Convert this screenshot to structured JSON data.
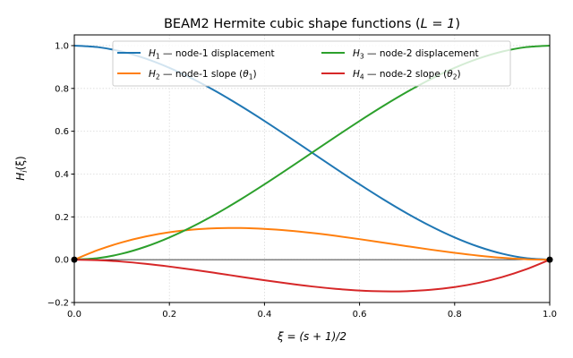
{
  "chart_data": {
    "type": "line",
    "title": {
      "prefix": "BEAM2 Hermite cubic shape functions (",
      "math": "L = 1",
      "suffix": ")"
    },
    "xlabel": {
      "math": "ξ = (s + 1)/2"
    },
    "ylabel": {
      "symbol": "H",
      "subscript": "i",
      "rest": "(ξ)"
    },
    "xlim": [
      0,
      1
    ],
    "ylim": [
      -0.2,
      1.05
    ],
    "xticks": [
      "0.0",
      "0.2",
      "0.4",
      "0.6",
      "0.8",
      "1.0"
    ],
    "yticks": [
      "−0.2",
      "0.0",
      "0.2",
      "0.4",
      "0.6",
      "0.8",
      "1.0"
    ],
    "grid": true,
    "legend_placement": "upper-center",
    "x": [
      0,
      0.05,
      0.1,
      0.15,
      0.2,
      0.25,
      0.3,
      0.35,
      0.4,
      0.45,
      0.5,
      0.55,
      0.6,
      0.65,
      0.7,
      0.75,
      0.8,
      0.85,
      0.9,
      0.95,
      1
    ],
    "series": [
      {
        "name": {
          "symbol": "H",
          "subscript": "1",
          "text": " — node-1 displacement"
        },
        "color": "#1f77b4",
        "values": [
          1,
          0.99275,
          0.972,
          0.93925,
          0.896,
          0.84375,
          0.784,
          0.71825,
          0.648,
          0.57475,
          0.5,
          0.42525,
          0.352,
          0.28175,
          0.216,
          0.15625,
          0.104,
          0.06075,
          0.028,
          0.00725,
          0
        ]
      },
      {
        "name": {
          "symbol": "H",
          "subscript": "2",
          "text": " — node-1 slope (",
          "sym2": "θ",
          "sub2": "1",
          "close": ")"
        },
        "color": "#ff7f0e",
        "values": [
          0,
          0.045125,
          0.081,
          0.108375,
          0.128,
          0.140625,
          0.147,
          0.147875,
          0.144,
          0.136125,
          0.125,
          0.111375,
          0.096,
          0.079625,
          0.063,
          0.046875,
          0.032,
          0.019125,
          0.009,
          0.002375,
          0
        ]
      },
      {
        "name": {
          "symbol": "H",
          "subscript": "3",
          "text": " — node-2 displacement"
        },
        "color": "#2ca02c",
        "values": [
          0,
          0.00725,
          0.028,
          0.06075,
          0.104,
          0.15625,
          0.216,
          0.28175,
          0.352,
          0.42525,
          0.5,
          0.57475,
          0.648,
          0.71825,
          0.784,
          0.84375,
          0.896,
          0.93925,
          0.972,
          0.99275,
          1
        ]
      },
      {
        "name": {
          "symbol": "H",
          "subscript": "4",
          "text": " — node-2 slope (",
          "sym2": "θ",
          "sub2": "2",
          "close": ")"
        },
        "color": "#d62728",
        "values": [
          0,
          -0.002375,
          -0.009,
          -0.019125,
          -0.032,
          -0.046875,
          -0.063,
          -0.079625,
          -0.096,
          -0.111375,
          -0.125,
          -0.136125,
          -0.144,
          -0.147875,
          -0.147,
          -0.140625,
          -0.128,
          -0.108375,
          -0.081,
          -0.045125,
          0
        ]
      }
    ],
    "node_markers": [
      {
        "x": 0,
        "y": 0
      },
      {
        "x": 1,
        "y": 0
      }
    ],
    "zero_line": true
  }
}
